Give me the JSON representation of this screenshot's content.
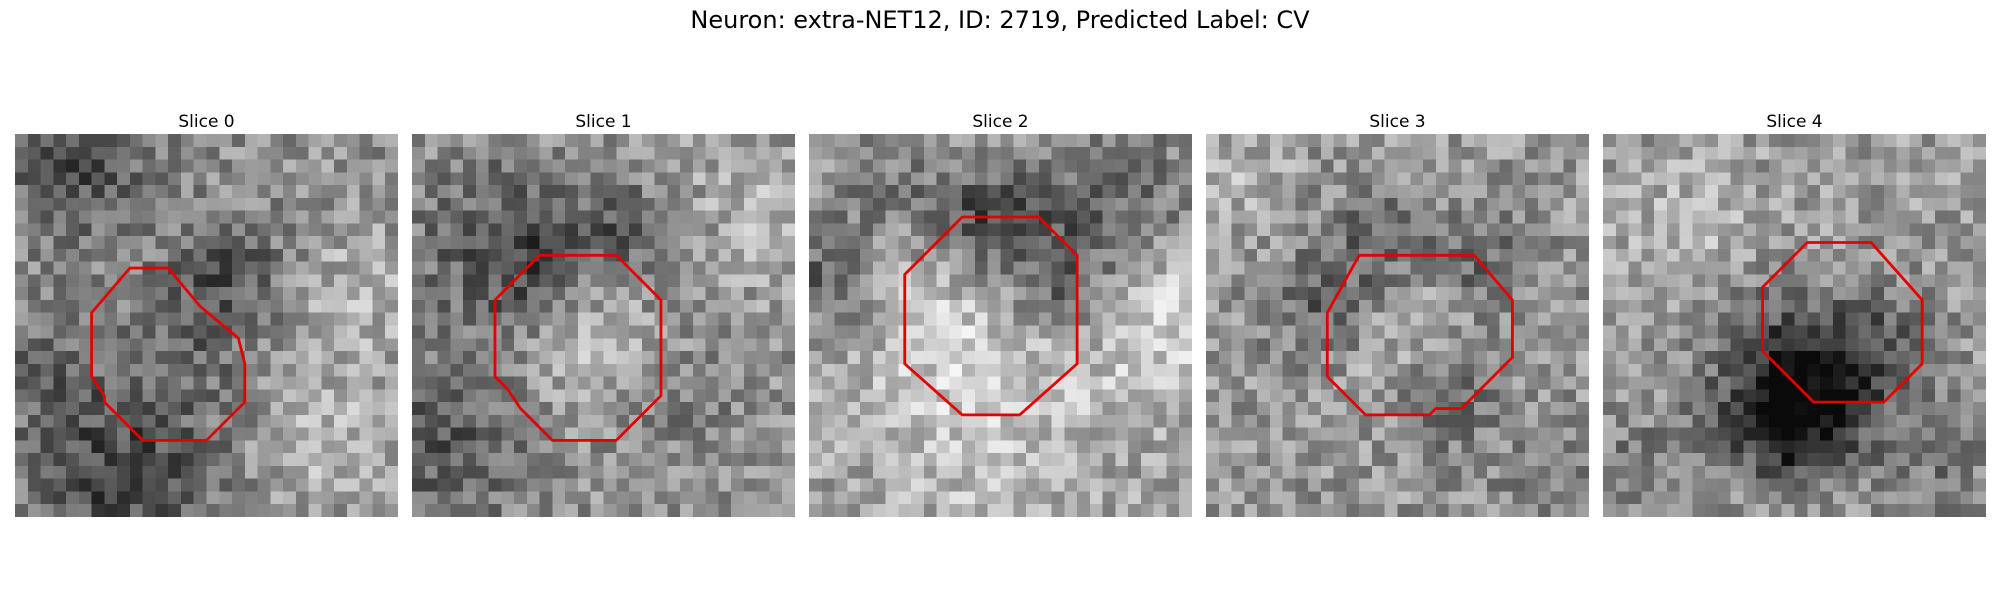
{
  "figure": {
    "title": "Neuron: extra-NET12, ID: 2719, Predicted Label: CV",
    "outline_color": "#e50000",
    "colormap": "gray"
  },
  "panels": [
    {
      "title": "Slice 0"
    },
    {
      "title": "Slice 1"
    },
    {
      "title": "Slice 2"
    },
    {
      "title": "Slice 3"
    },
    {
      "title": "Slice 4"
    }
  ]
}
